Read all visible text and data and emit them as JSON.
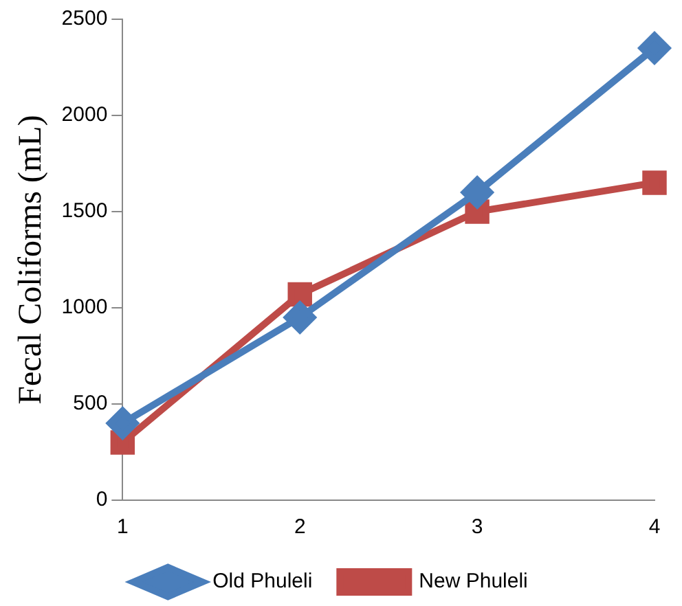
{
  "chart_data": {
    "type": "line",
    "ylabel": "Fecal Coliforms (mL)",
    "categories": [
      "1",
      "2",
      "3",
      "4"
    ],
    "series": [
      {
        "name": "Old Phuleli",
        "color": "#4a7ebb",
        "marker": "diamond",
        "values": [
          400,
          950,
          1600,
          2350
        ]
      },
      {
        "name": "New Phuleli",
        "color": "#be4b48",
        "marker": "square",
        "values": [
          300,
          1070,
          1500,
          1650
        ]
      }
    ],
    "ylim": [
      0,
      2500
    ],
    "yticks": [
      0,
      500,
      1000,
      1500,
      2000,
      2500
    ],
    "grid": false,
    "legend": "bottom",
    "line_style": "solid"
  }
}
